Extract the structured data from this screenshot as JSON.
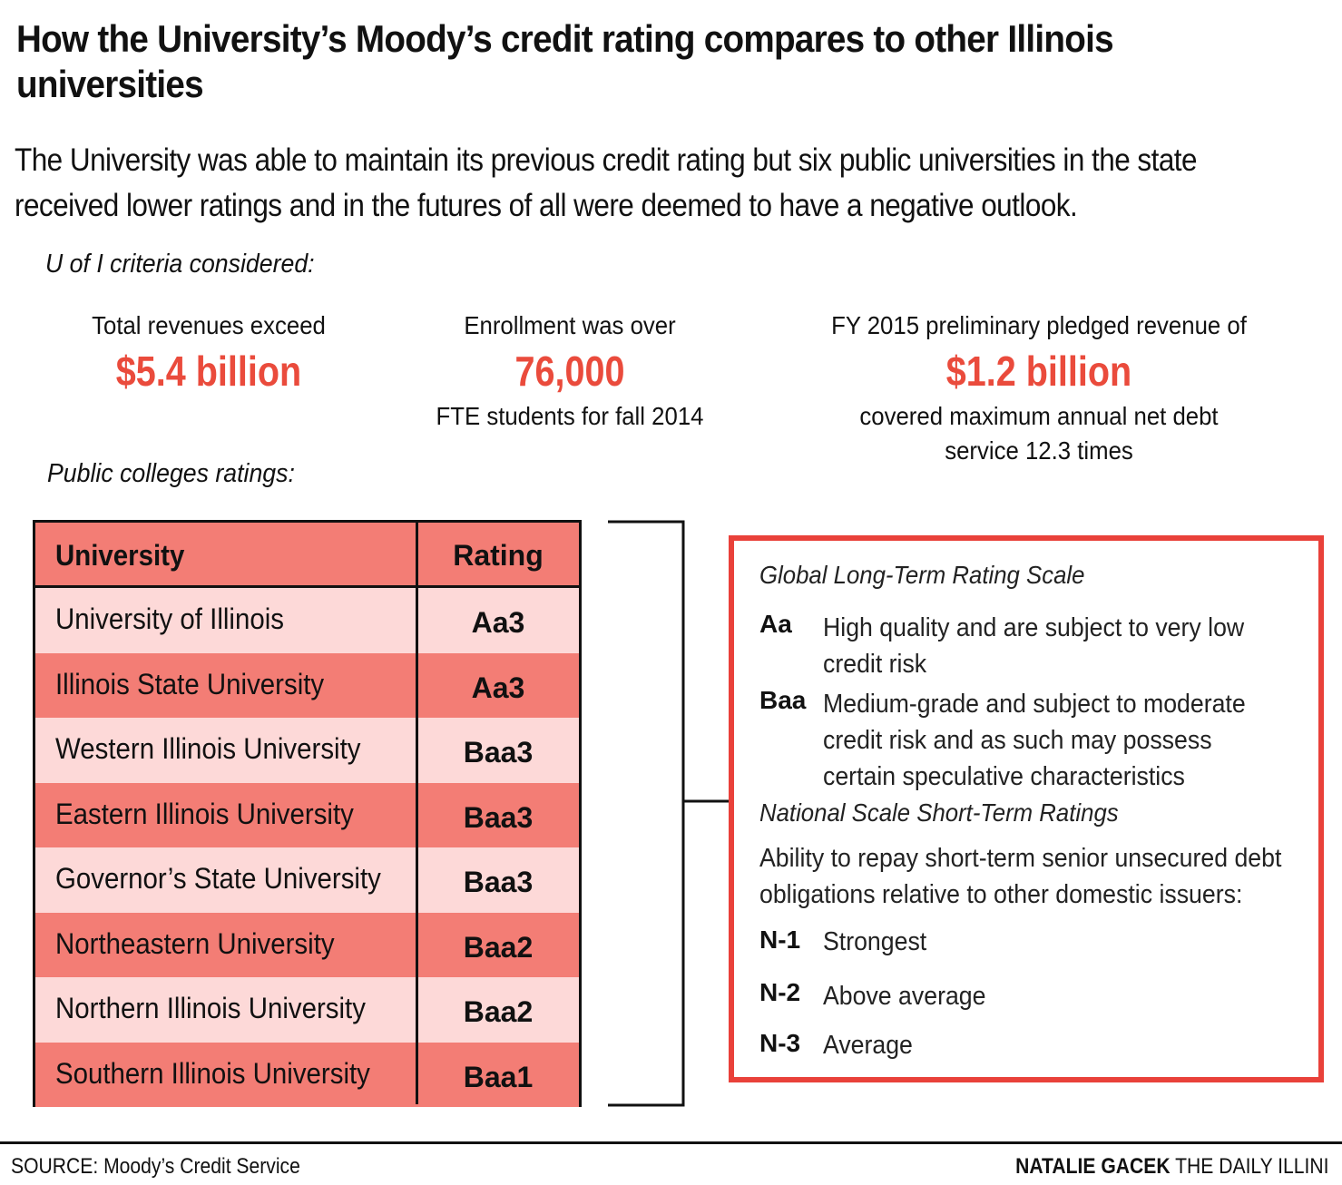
{
  "header": {
    "title": "How the University’s Moody’s credit rating compares to other Illinois universities",
    "subtitle": "The University was able to maintain its previous credit rating but six public universities in the state received lower ratings and in the futures of all were deemed to have a negative outlook."
  },
  "criteria": {
    "label": "U of I criteria considered:",
    "items": [
      {
        "pre": "Total revenues exceed",
        "value": "$5.4 billion",
        "post": ""
      },
      {
        "pre": "Enrollment was over",
        "value": "76,000",
        "post": "FTE students for fall 2014"
      },
      {
        "pre": "FY 2015 preliminary pledged revenue of",
        "value": "$1.2 billion",
        "post": "covered maximum annual net debt service 12.3 times"
      }
    ]
  },
  "chart_data": {
    "type": "table",
    "title": "Public colleges ratings:",
    "columns": [
      "University",
      "Rating"
    ],
    "rows": [
      [
        "University of Illinois",
        "Aa3"
      ],
      [
        "Illinois State University",
        "Aa3"
      ],
      [
        "Western Illinois University",
        "Baa3"
      ],
      [
        "Eastern Illinois University",
        "Baa3"
      ],
      [
        "Governor’s State University",
        "Baa3"
      ],
      [
        "Northeastern University",
        "Baa2"
      ],
      [
        "Northern Illinois University",
        "Baa2"
      ],
      [
        "Southern Illinois University",
        "Baa1"
      ]
    ]
  },
  "legend": {
    "global_title": "Global Long-Term Rating Scale",
    "global_items": [
      {
        "code": "Aa",
        "lines": [
          "High quality and are subject to very low",
          "credit risk"
        ]
      },
      {
        "code": "Baa",
        "lines": [
          "Medium-grade and subject to moderate",
          "credit risk and as such may possess",
          "certain speculative characteristics"
        ]
      }
    ],
    "national_title": "National Scale Short-Term Ratings",
    "national_desc": [
      "Ability to repay short-term senior unsecured debt",
      "obligations relative to other domestic issuers:"
    ],
    "national_items": [
      {
        "code": "N-1",
        "text": "Strongest"
      },
      {
        "code": "N-2",
        "text": "Above average"
      },
      {
        "code": "N-3",
        "text": "Average"
      }
    ]
  },
  "footer": {
    "source": "SOURCE: Moody’s Credit Service",
    "author": "NATALIE GACEK",
    "publication": "THE DAILY ILLINI"
  },
  "colors": {
    "accent_red": "#ea4b3c",
    "row_dark": "#f37d75",
    "row_light": "#fdd9d8",
    "legend_border": "#e9413a"
  }
}
